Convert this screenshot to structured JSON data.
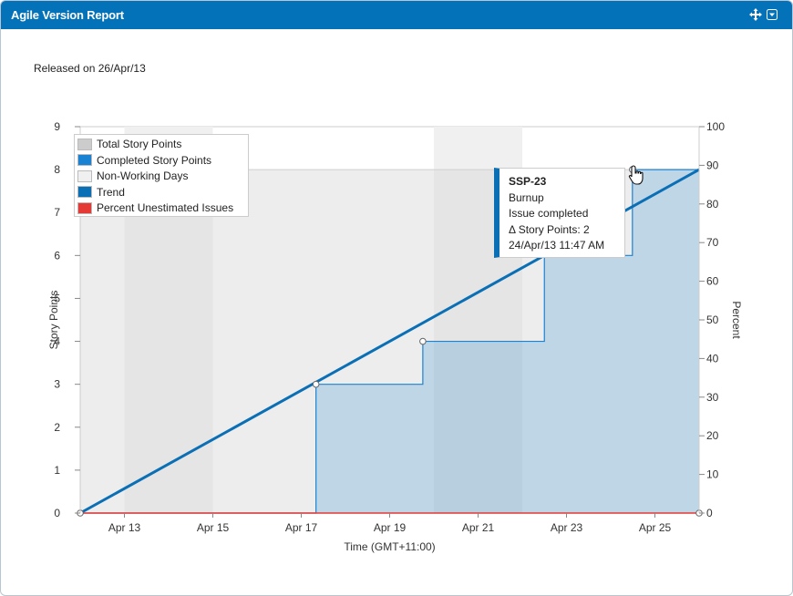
{
  "header": {
    "title": "Agile Version Report",
    "move_icon": "move-arrows-icon",
    "menu_icon": "dropdown-menu-icon"
  },
  "released_text": "Released on 26/Apr/13",
  "legend": [
    {
      "label": "Total Story Points",
      "color": "#cccccc"
    },
    {
      "label": "Completed Story Points",
      "color": "#1a82d2"
    },
    {
      "label": "Non-Working Days",
      "color": "#f0f0f0"
    },
    {
      "label": "Trend",
      "color": "#0a6fb5"
    },
    {
      "label": "Percent Unestimated Issues",
      "color": "#e53935"
    }
  ],
  "tooltip": {
    "issue": "SSP-23",
    "type": "Burnup",
    "event": "Issue completed",
    "delta": "Δ Story Points: 2",
    "time": "24/Apr/13 11:47 AM"
  },
  "chart_data": {
    "type": "area",
    "xlabel": "Time (GMT+11:00)",
    "ylabel": "Story Points",
    "y2label": "Percent",
    "x_range": [
      "2013-04-12",
      "2013-04-26"
    ],
    "x_ticks": [
      "Apr 13",
      "Apr 15",
      "Apr 17",
      "Apr 19",
      "Apr 21",
      "Apr 23",
      "Apr 25"
    ],
    "x_tick_dates": [
      "2013-04-13",
      "2013-04-15",
      "2013-04-17",
      "2013-04-19",
      "2013-04-21",
      "2013-04-23",
      "2013-04-25"
    ],
    "ylim": [
      0,
      9
    ],
    "y_ticks": [
      0,
      1,
      2,
      3,
      4,
      5,
      6,
      7,
      8,
      9
    ],
    "y2lim": [
      0,
      100
    ],
    "y2_ticks": [
      0,
      10,
      20,
      30,
      40,
      50,
      60,
      70,
      80,
      90,
      100
    ],
    "non_working_days": [
      {
        "start": "2013-04-13",
        "end": "2013-04-15"
      },
      {
        "start": "2013-04-20",
        "end": "2013-04-22"
      }
    ],
    "series": [
      {
        "name": "Total Story Points",
        "points": [
          {
            "x": "2013-04-12",
            "y": 8
          },
          {
            "x": "2013-04-26",
            "y": 8
          }
        ]
      },
      {
        "name": "Completed Story Points",
        "points": [
          {
            "x": "2013-04-12",
            "y": 0
          },
          {
            "x": "2013-04-17 08:00",
            "y": 0
          },
          {
            "x": "2013-04-17 08:00",
            "y": 3
          },
          {
            "x": "2013-04-19 18:00",
            "y": 3
          },
          {
            "x": "2013-04-19 18:00",
            "y": 4
          },
          {
            "x": "2013-04-22 12:00",
            "y": 4
          },
          {
            "x": "2013-04-22 12:00",
            "y": 6
          },
          {
            "x": "2013-04-24 11:47",
            "y": 6
          },
          {
            "x": "2013-04-24 11:47",
            "y": 8
          },
          {
            "x": "2013-04-26",
            "y": 8
          }
        ]
      },
      {
        "name": "Trend",
        "points": [
          {
            "x": "2013-04-12",
            "y": 0
          },
          {
            "x": "2013-04-26",
            "y": 8
          }
        ]
      },
      {
        "name": "Percent Unestimated Issues",
        "axis": "right",
        "points": [
          {
            "x": "2013-04-12",
            "y": 0
          },
          {
            "x": "2013-04-26",
            "y": 0
          }
        ]
      }
    ],
    "markers": [
      {
        "x": "2013-04-12",
        "y": 0
      },
      {
        "x": "2013-04-17 08:00",
        "y": 3
      },
      {
        "x": "2013-04-19 18:00",
        "y": 4
      },
      {
        "x": "2013-04-24 11:47",
        "y": 8
      },
      {
        "x": "2013-04-26",
        "y": 0
      }
    ],
    "grid": false,
    "legend_position": "top-left"
  }
}
